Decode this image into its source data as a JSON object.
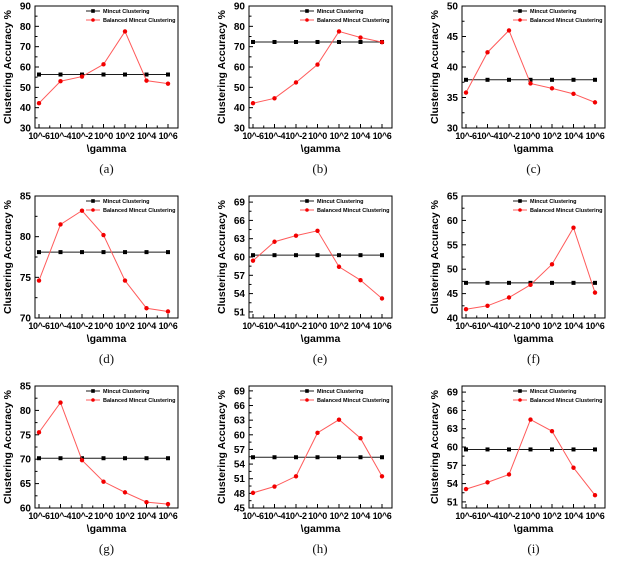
{
  "figure": {
    "ylabel": "Clustering Accuracy %",
    "xlabel": "\\gamma",
    "legend_position": "top-right",
    "grid": "off",
    "colors": {
      "mincut_line": "#1c1c1c",
      "mincut_marker": "#000000",
      "balanced_line": "#ff5b5b",
      "balanced_marker": "#f20000"
    },
    "legend_entries": [
      "Mincut Clustering",
      "Balanced Mincut Clustering"
    ]
  },
  "chart_data": [
    {
      "type": "line",
      "caption": "(a)",
      "categories": [
        "10^-6",
        "10^-4",
        "10^-2",
        "10^0",
        "10^2",
        "10^4",
        "10^6"
      ],
      "xlabel": "\\gamma",
      "ylabel": "Clustering Accuracy %",
      "ylim": [
        30,
        90
      ],
      "yticks": [
        30,
        40,
        50,
        60,
        70,
        80,
        90
      ],
      "series": [
        {
          "name": "Mincut Clustering",
          "values": [
            56.3,
            56.3,
            56.3,
            56.3,
            56.3,
            56.3,
            56.3
          ]
        },
        {
          "name": "Balanced Mincut Clustering",
          "values": [
            42.2,
            53.0,
            55.3,
            61.3,
            77.5,
            53.3,
            51.8
          ]
        }
      ]
    },
    {
      "type": "line",
      "caption": "(b)",
      "categories": [
        "10^-6",
        "10^-4",
        "10^-2",
        "10^0",
        "10^2",
        "10^4",
        "10^6"
      ],
      "xlabel": "\\gamma",
      "ylabel": "Clustering Accuracy %",
      "ylim": [
        30,
        90
      ],
      "yticks": [
        30,
        40,
        50,
        60,
        70,
        80,
        90
      ],
      "series": [
        {
          "name": "Mincut Clustering",
          "values": [
            72.3,
            72.3,
            72.3,
            72.3,
            72.3,
            72.3,
            72.3
          ]
        },
        {
          "name": "Balanced Mincut Clustering",
          "values": [
            42.2,
            44.6,
            52.4,
            61.2,
            77.5,
            74.5,
            72.2
          ]
        }
      ]
    },
    {
      "type": "line",
      "caption": "(c)",
      "categories": [
        "10^-6",
        "10^-4",
        "10^-2",
        "10^0",
        "10^2",
        "10^4",
        "10^6"
      ],
      "xlabel": "\\gamma",
      "ylabel": "Clustering Accuracy %",
      "ylim": [
        30,
        50
      ],
      "yticks": [
        30,
        35,
        40,
        45,
        50
      ],
      "series": [
        {
          "name": "Mincut Clustering",
          "values": [
            37.9,
            37.9,
            37.9,
            37.9,
            37.9,
            37.9,
            37.9
          ]
        },
        {
          "name": "Balanced Mincut Clustering",
          "values": [
            35.8,
            42.4,
            46.0,
            37.3,
            36.5,
            35.6,
            34.2
          ]
        }
      ]
    },
    {
      "type": "line",
      "caption": "(d)",
      "categories": [
        "10^-6",
        "10^-4",
        "10^-2",
        "10^0",
        "10^2",
        "10^4",
        "10^6"
      ],
      "xlabel": "\\gamma",
      "ylabel": "Clustering Accuracy %",
      "ylim": [
        70,
        85
      ],
      "yticks": [
        70,
        75,
        80,
        85
      ],
      "series": [
        {
          "name": "Mincut Clustering",
          "values": [
            78.1,
            78.1,
            78.1,
            78.1,
            78.1,
            78.1,
            78.1
          ]
        },
        {
          "name": "Balanced Mincut Clustering",
          "values": [
            74.6,
            81.5,
            83.2,
            80.2,
            74.6,
            71.2,
            70.8
          ]
        }
      ]
    },
    {
      "type": "line",
      "caption": "(e)",
      "categories": [
        "10^-6",
        "10^-4",
        "10^-2",
        "10^0",
        "10^2",
        "10^4",
        "10^6"
      ],
      "xlabel": "\\gamma",
      "ylabel": "Clustering Accuracy %",
      "ylim": [
        50,
        70
      ],
      "yticks": [
        51,
        54,
        57,
        60,
        63,
        66,
        69
      ],
      "series": [
        {
          "name": "Mincut Clustering",
          "values": [
            60.3,
            60.3,
            60.3,
            60.3,
            60.3,
            60.3,
            60.3
          ]
        },
        {
          "name": "Balanced Mincut Clustering",
          "values": [
            59.4,
            62.5,
            63.5,
            64.3,
            58.4,
            56.2,
            53.2
          ]
        }
      ]
    },
    {
      "type": "line",
      "caption": "(f)",
      "categories": [
        "10^-6",
        "10^-4",
        "10^-2",
        "10^0",
        "10^2",
        "10^4",
        "10^6"
      ],
      "xlabel": "\\gamma",
      "ylabel": "Clustering Accuracy %",
      "ylim": [
        40,
        65
      ],
      "yticks": [
        40,
        45,
        50,
        55,
        60,
        65
      ],
      "series": [
        {
          "name": "Mincut Clustering",
          "values": [
            47.2,
            47.2,
            47.2,
            47.2,
            47.2,
            47.2,
            47.2
          ]
        },
        {
          "name": "Balanced Mincut Clustering",
          "values": [
            41.8,
            42.5,
            44.2,
            46.8,
            51.0,
            58.5,
            45.2
          ]
        }
      ]
    },
    {
      "type": "line",
      "caption": "(g)",
      "categories": [
        "10^-6",
        "10^-4",
        "10^-2",
        "10^0",
        "10^2",
        "10^4",
        "10^6"
      ],
      "xlabel": "\\gamma",
      "ylabel": "Clustering Accuracy %",
      "ylim": [
        60,
        85
      ],
      "yticks": [
        60,
        65,
        70,
        75,
        80,
        85
      ],
      "series": [
        {
          "name": "Mincut Clustering",
          "values": [
            70.2,
            70.2,
            70.2,
            70.2,
            70.2,
            70.2,
            70.2
          ]
        },
        {
          "name": "Balanced Mincut Clustering",
          "values": [
            75.5,
            81.6,
            69.8,
            65.4,
            63.2,
            61.2,
            60.8
          ]
        }
      ]
    },
    {
      "type": "line",
      "caption": "(h)",
      "categories": [
        "10^-6",
        "10^-4",
        "10^-2",
        "10^0",
        "10^2",
        "10^4",
        "10^6"
      ],
      "xlabel": "\\gamma",
      "ylabel": "Clustering Accuracy %",
      "ylim": [
        45,
        70
      ],
      "yticks": [
        45,
        48,
        51,
        54,
        57,
        60,
        63,
        66,
        69
      ],
      "series": [
        {
          "name": "Mincut Clustering",
          "values": [
            55.4,
            55.4,
            55.4,
            55.4,
            55.4,
            55.4,
            55.4
          ]
        },
        {
          "name": "Balanced Mincut Clustering",
          "values": [
            48.1,
            49.4,
            51.5,
            60.4,
            63.1,
            59.3,
            51.5
          ]
        }
      ]
    },
    {
      "type": "line",
      "caption": "(i)",
      "categories": [
        "10^-6",
        "10^-4",
        "10^-2",
        "10^0",
        "10^2",
        "10^4",
        "10^6"
      ],
      "xlabel": "\\gamma",
      "ylabel": "Clustering Accuracy %",
      "ylim": [
        50,
        70
      ],
      "yticks": [
        51,
        54,
        57,
        60,
        63,
        66,
        69
      ],
      "series": [
        {
          "name": "Mincut Clustering",
          "values": [
            59.6,
            59.6,
            59.6,
            59.6,
            59.6,
            59.6,
            59.6
          ]
        },
        {
          "name": "Balanced Mincut Clustering",
          "values": [
            53.1,
            54.2,
            55.5,
            64.5,
            62.6,
            56.6,
            52.1
          ]
        }
      ]
    }
  ]
}
